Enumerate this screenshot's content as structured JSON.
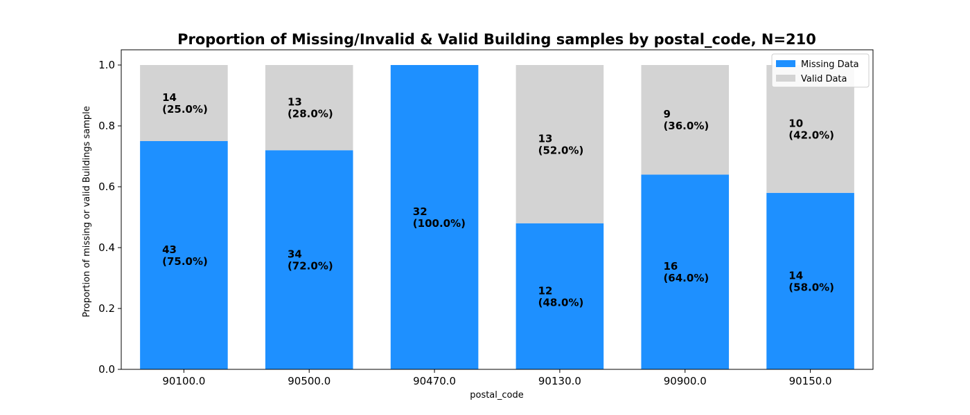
{
  "chart_data": {
    "type": "bar",
    "stacked": true,
    "title": "Proportion of Missing/Invalid & Valid Building samples by postal_code, N=210",
    "xlabel": "postal_code",
    "ylabel": "Proportion of missing or valid Buildings sample",
    "ylim": [
      0,
      1.05
    ],
    "yticks": [
      "0.0",
      "0.2",
      "0.4",
      "0.6",
      "0.8",
      "1.0"
    ],
    "ytick_values": [
      0,
      0.2,
      0.4,
      0.6,
      0.8,
      1.0
    ],
    "categories": [
      "90100.0",
      "90500.0",
      "90470.0",
      "90130.0",
      "90900.0",
      "90150.0"
    ],
    "series": [
      {
        "name": "Missing Data",
        "color": "#1e90ff",
        "values": [
          0.75,
          0.72,
          1.0,
          0.48,
          0.64,
          0.58
        ],
        "labels": [
          [
            "43",
            "(75.0%)"
          ],
          [
            "34",
            "(72.0%)"
          ],
          [
            "32",
            "(100.0%)"
          ],
          [
            "12",
            "(48.0%)"
          ],
          [
            "16",
            "(64.0%)"
          ],
          [
            "14",
            "(58.0%)"
          ]
        ]
      },
      {
        "name": "Valid Data",
        "color": "#d3d3d3",
        "values": [
          0.25,
          0.28,
          0.0,
          0.52,
          0.36,
          0.42
        ],
        "labels": [
          [
            "14",
            "(25.0%)"
          ],
          [
            "13",
            "(28.0%)"
          ],
          null,
          [
            "13",
            "(52.0%)"
          ],
          [
            "9",
            "(36.0%)"
          ],
          [
            "10",
            "(42.0%)"
          ]
        ]
      }
    ],
    "legend": {
      "position": "top-right"
    },
    "grid": false
  }
}
